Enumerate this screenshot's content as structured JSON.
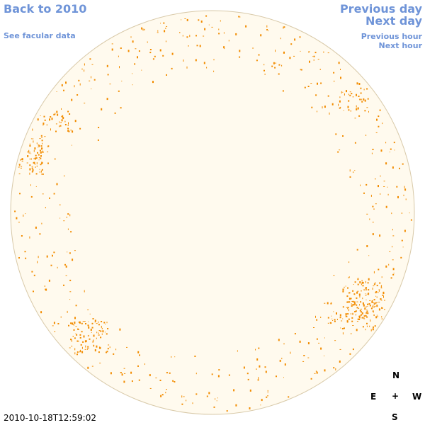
{
  "nav": {
    "back_label": "Back to 2010",
    "facular_label": "See facular data",
    "prev_day_label": "Previous day",
    "next_day_label": "Next day",
    "prev_hour_label": "Previous hour",
    "next_hour_label": "Next hour"
  },
  "compass": {
    "north": "N",
    "east": "E",
    "west": "W",
    "south": "S",
    "center": "+"
  },
  "timestamp": "2010-10-18T12:59:02",
  "colors": {
    "disk_fill": "#fffaee",
    "disk_edge": "#d8c9a8",
    "faculae": "#f28c00",
    "link": "#6f94d8"
  }
}
